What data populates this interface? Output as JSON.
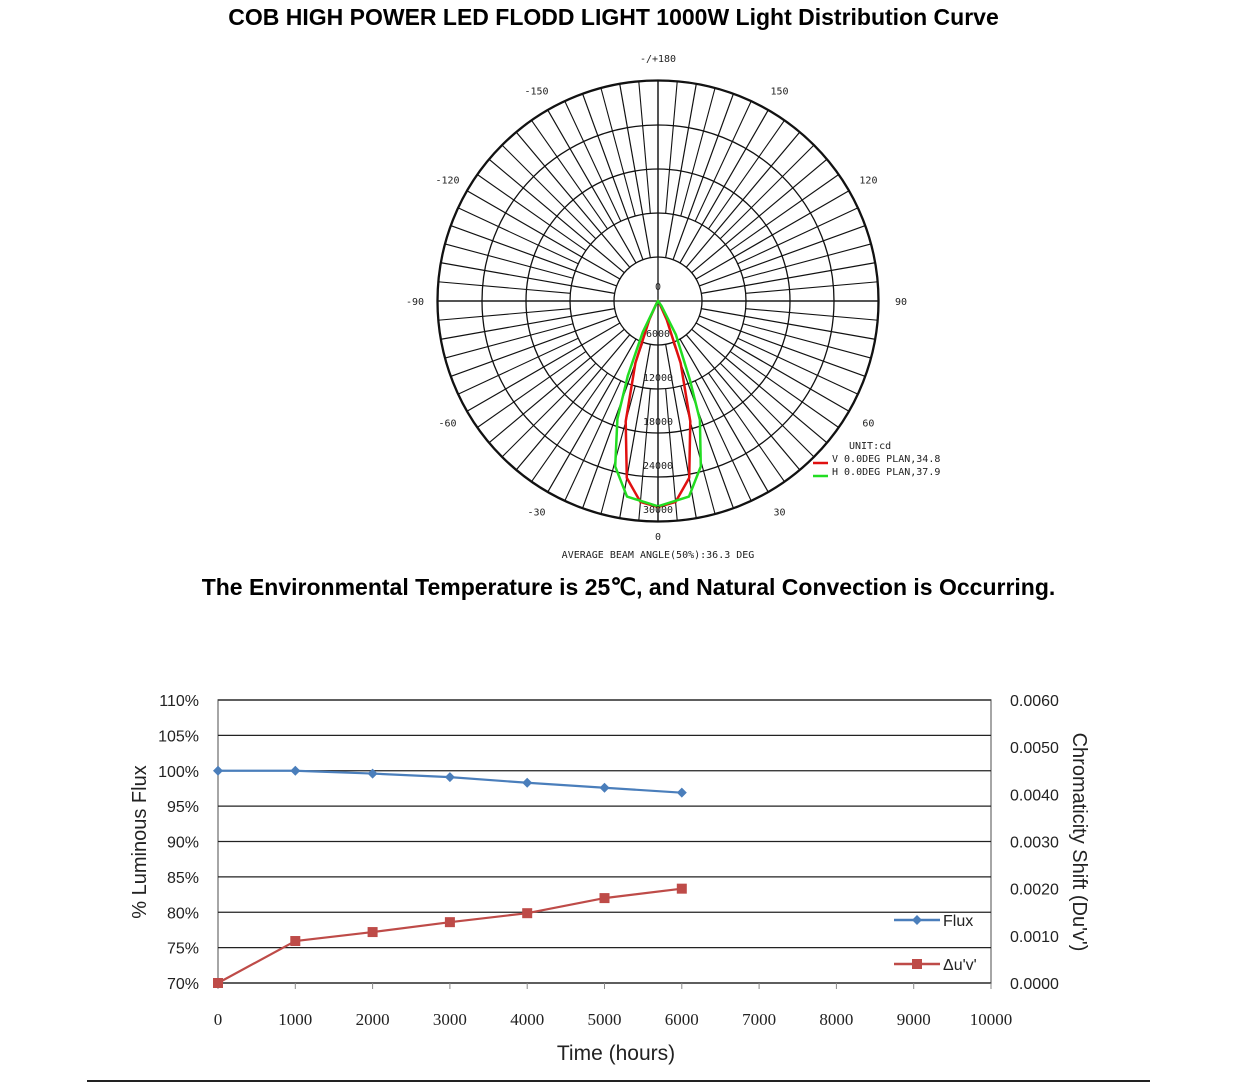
{
  "title": "COB HIGH POWER LED FLODD LIGHT 1000W Light Distribution Curve",
  "subtitle": "The Environmental Temperature is 25℃, and Natural Convection is Occurring.",
  "chart_data": [
    {
      "type": "polar",
      "title": "COB HIGH POWER LED FLODD LIGHT 1000W Light Distribution Curve",
      "angle_labels": [
        {
          "deg": 180,
          "text": "-/+180"
        },
        {
          "deg": 150,
          "text": "150"
        },
        {
          "deg": -150,
          "text": "-150"
        },
        {
          "deg": 120,
          "text": "120"
        },
        {
          "deg": -120,
          "text": "-120"
        },
        {
          "deg": 90,
          "text": "90"
        },
        {
          "deg": -90,
          "text": "-90"
        },
        {
          "deg": 60,
          "text": "60"
        },
        {
          "deg": -60,
          "text": "-60"
        },
        {
          "deg": 30,
          "text": "30"
        },
        {
          "deg": -30,
          "text": "-30"
        },
        {
          "deg": 0,
          "text": "0"
        }
      ],
      "radial_ticks": [
        0,
        6000,
        12000,
        18000,
        24000,
        30000
      ],
      "rmax": 30000,
      "unit": "UNIT:cd",
      "series": [
        {
          "name": "V 0.0DEG PLAN,34.8",
          "color": "#e01010",
          "points": [
            [
              -40,
              0
            ],
            [
              -30,
              400
            ],
            [
              -25,
              2800
            ],
            [
              -20,
              9000
            ],
            [
              -15,
              17000
            ],
            [
              -10,
              24500
            ],
            [
              -5,
              27500
            ],
            [
              0,
              28100
            ],
            [
              5,
              27500
            ],
            [
              10,
              24500
            ],
            [
              15,
              17000
            ],
            [
              20,
              9000
            ],
            [
              25,
              2800
            ],
            [
              30,
              400
            ],
            [
              40,
              0
            ]
          ]
        },
        {
          "name": "H 0.0DEG PLAN,37.9",
          "color": "#22dd22",
          "points": [
            [
              -40,
              0
            ],
            [
              -30,
              500
            ],
            [
              -26,
              4800
            ],
            [
              -22,
              11000
            ],
            [
              -19,
              17000
            ],
            [
              -14.5,
              23300
            ],
            [
              -9,
              27000
            ],
            [
              0,
              28000
            ],
            [
              9,
              27000
            ],
            [
              14.5,
              23300
            ],
            [
              19.4,
              17200
            ],
            [
              22,
              11600
            ],
            [
              28,
              5200
            ],
            [
              35,
              800
            ],
            [
              40,
              0
            ]
          ]
        }
      ],
      "footer": "AVERAGE BEAM ANGLE(50%):36.3 DEG"
    },
    {
      "type": "line",
      "xlabel": "Time (hours)",
      "ylabel": "% Luminous Flux",
      "y2label": "Chromaticity Shift (Du'v')",
      "x": [
        0,
        1000,
        2000,
        3000,
        4000,
        5000,
        6000
      ],
      "xlim": [
        0,
        10000
      ],
      "xticks": [
        "0",
        "1000",
        "2000",
        "3000",
        "4000",
        "5000",
        "6000",
        "7000",
        "8000",
        "9000",
        "10000"
      ],
      "ylim": [
        70,
        110
      ],
      "yticks": [
        "70%",
        "75%",
        "80%",
        "85%",
        "90%",
        "95%",
        "100%",
        "105%",
        "110%"
      ],
      "y2lim": [
        0,
        0.006
      ],
      "y2ticks": [
        "0.0000",
        "0.0010",
        "0.0020",
        "0.0030",
        "0.0040",
        "0.0050",
        "0.0060"
      ],
      "legend": "right",
      "series": [
        {
          "name": "Flux",
          "axis": "left",
          "color": "#4a7ebb",
          "marker": "diamond",
          "values": [
            100,
            100,
            99.6,
            99.1,
            98.3,
            97.6,
            96.9
          ]
        },
        {
          "name": "Δu'v'",
          "axis": "right",
          "color": "#be4b48",
          "marker": "square",
          "values": [
            0,
            0.00089,
            0.00108,
            0.00129,
            0.00148,
            0.0018,
            0.002
          ]
        }
      ]
    }
  ]
}
